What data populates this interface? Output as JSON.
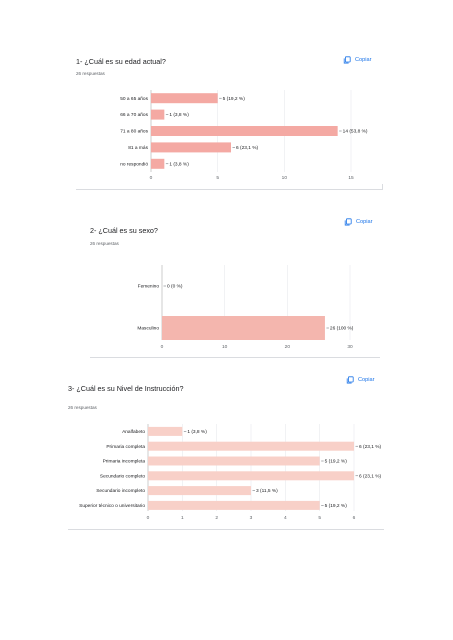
{
  "questions": [
    {
      "title": "1- ¿Cuál es su edad actual?",
      "responses": "26 respuestas",
      "copy_label": "Copiar"
    },
    {
      "title": "2- ¿Cuál es su sexo?",
      "responses": "26 respuestas",
      "copy_label": "Copiar"
    },
    {
      "title": "3- ¿Cuál es su Nivel de Instrucción?",
      "responses": "26 respuestas",
      "copy_label": "Copiar"
    }
  ],
  "chart_data": [
    {
      "type": "bar",
      "orientation": "horizontal",
      "categories": [
        "50 a 65 años",
        "66 a 70 años",
        "71 a 80 años",
        "81 a más",
        "no respondió"
      ],
      "values": [
        5,
        1,
        14,
        6,
        1
      ],
      "data_labels": [
        "5 (19,2 %)",
        "1 (3,8 %)",
        "14 (53,8 %)",
        "6 (23,1 %)",
        "1 (3,8 %)"
      ],
      "x_ticks": [
        "0",
        "5",
        "10",
        "15"
      ],
      "xlim": [
        0,
        15
      ],
      "bar_color": "#f4a9a3"
    },
    {
      "type": "bar",
      "orientation": "horizontal",
      "categories": [
        "Femenino",
        "Masculino"
      ],
      "values": [
        0,
        26
      ],
      "data_labels": [
        "0 (0 %)",
        "26 (100 %)"
      ],
      "x_ticks": [
        "0",
        "10",
        "20",
        "30"
      ],
      "xlim": [
        0,
        30
      ],
      "bar_color": "#f4b6ae"
    },
    {
      "type": "bar",
      "orientation": "horizontal",
      "categories": [
        "Analfabeto",
        "Primaria completa",
        "Primaria incompleta",
        "Secundario completo",
        "Secundario incompleto",
        "Superior técnico o universitario"
      ],
      "values": [
        1,
        6,
        5,
        6,
        3,
        5
      ],
      "data_labels": [
        "1 (3,8 %)",
        "6 (23,1 %)",
        "5 (19,2 %)",
        "6 (23,1 %)",
        "3 (11,5 %)",
        "5 (19,2 %)"
      ],
      "x_ticks": [
        "0",
        "1",
        "2",
        "3",
        "4",
        "5",
        "6"
      ],
      "xlim": [
        0,
        6
      ],
      "bar_color": "#f8d0c8"
    }
  ]
}
